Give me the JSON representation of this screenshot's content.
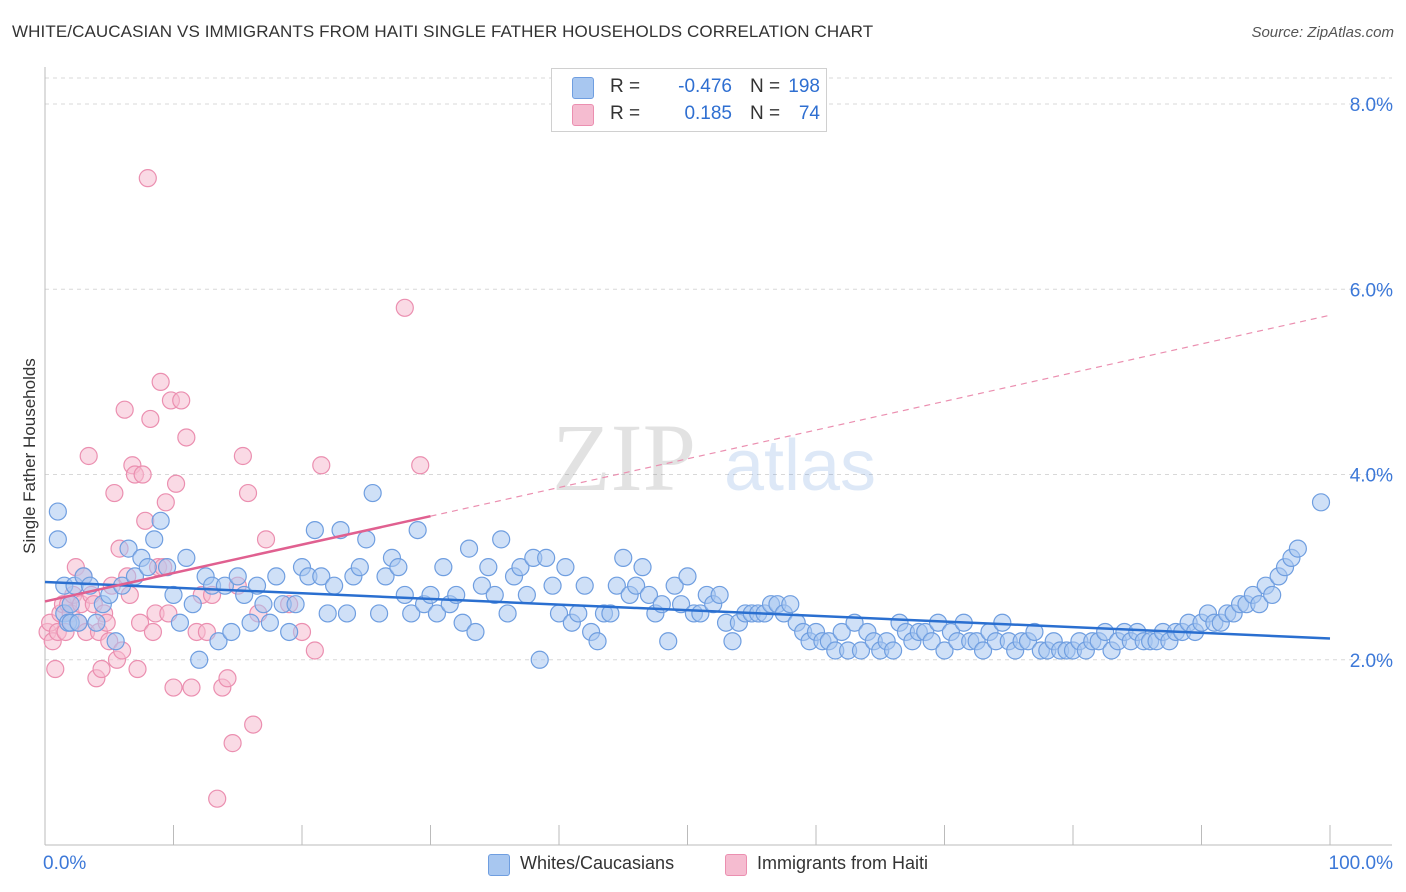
{
  "header": {
    "title": "WHITE/CAUCASIAN VS IMMIGRANTS FROM HAITI SINGLE FATHER HOUSEHOLDS CORRELATION CHART",
    "source": "Source: ZipAtlas.com"
  },
  "watermark": {
    "zip": "ZIP",
    "atlas": "atlas"
  },
  "legend": {
    "rows": [
      {
        "r_label": "R =",
        "r_value": "-0.476",
        "n_label": "N =",
        "n_value": "198",
        "color": "#7ba8e8"
      },
      {
        "r_label": "R =",
        "r_value": "0.185",
        "n_label": "N =",
        "n_value": "74",
        "color": "#ef93b3"
      }
    ]
  },
  "bottom_legend": {
    "items": [
      {
        "label": "Whites/Caucasians",
        "color": "#7ba8e8"
      },
      {
        "label": "Immigrants from Haiti",
        "color": "#ef93b3"
      }
    ]
  },
  "colors": {
    "blue_fill": "#a8c7f0",
    "blue_stroke": "#6f9ee0",
    "blue_line": "#2a6fd0",
    "pink_fill": "#f5bcd0",
    "pink_stroke": "#eb8fb0",
    "pink_line": "#e06090",
    "tick_label": "#3c78d8",
    "grid": "#d8d8d8"
  },
  "chart_data": {
    "type": "scatter",
    "title": "WHITE/CAUCASIAN VS IMMIGRANTS FROM HAITI SINGLE FATHER HOUSEHOLDS CORRELATION CHART",
    "xlabel": "",
    "ylabel": "Single Father Households",
    "xlim": [
      0,
      100
    ],
    "ylim": [
      0,
      8.4
    ],
    "x_tick_labels": [
      "0.0%",
      "100.0%"
    ],
    "y_ticks": [
      2.0,
      4.0,
      6.0,
      8.0
    ],
    "y_tick_labels": [
      "2.0%",
      "4.0%",
      "6.0%",
      "8.0%"
    ],
    "grid": true,
    "legend_position": "top-center",
    "series": [
      {
        "name": "Whites/Caucasians",
        "r": -0.476,
        "n": 198,
        "trend": {
          "x0": 0,
          "y0": 2.84,
          "x1": 100,
          "y1": 2.23,
          "style": "solid"
        },
        "points": [
          [
            1.0,
            3.6
          ],
          [
            1.0,
            3.3
          ],
          [
            1.5,
            2.8
          ],
          [
            1.5,
            2.5
          ],
          [
            1.8,
            2.4
          ],
          [
            2.0,
            2.6
          ],
          [
            2.0,
            2.4
          ],
          [
            2.3,
            2.8
          ],
          [
            2.6,
            2.4
          ],
          [
            3.0,
            2.9
          ],
          [
            3.5,
            2.8
          ],
          [
            4.0,
            2.4
          ],
          [
            4.5,
            2.6
          ],
          [
            5.0,
            2.7
          ],
          [
            5.5,
            2.2
          ],
          [
            6.0,
            2.8
          ],
          [
            6.5,
            3.2
          ],
          [
            7.0,
            2.9
          ],
          [
            7.5,
            3.1
          ],
          [
            8.0,
            3.0
          ],
          [
            8.5,
            3.3
          ],
          [
            9.0,
            3.5
          ],
          [
            9.5,
            3.0
          ],
          [
            10.0,
            2.7
          ],
          [
            10.5,
            2.4
          ],
          [
            11.0,
            3.1
          ],
          [
            11.5,
            2.6
          ],
          [
            12.0,
            2.0
          ],
          [
            12.5,
            2.9
          ],
          [
            13.0,
            2.8
          ],
          [
            13.5,
            2.2
          ],
          [
            14.0,
            2.8
          ],
          [
            14.5,
            2.3
          ],
          [
            15.0,
            2.9
          ],
          [
            15.5,
            2.7
          ],
          [
            16.0,
            2.4
          ],
          [
            16.5,
            2.8
          ],
          [
            17.0,
            2.6
          ],
          [
            17.5,
            2.4
          ],
          [
            18.0,
            2.9
          ],
          [
            18.5,
            2.6
          ],
          [
            19.0,
            2.3
          ],
          [
            19.5,
            2.6
          ],
          [
            20.0,
            3.0
          ],
          [
            20.5,
            2.9
          ],
          [
            21.0,
            3.4
          ],
          [
            21.5,
            2.9
          ],
          [
            22.0,
            2.5
          ],
          [
            22.5,
            2.8
          ],
          [
            23.0,
            3.4
          ],
          [
            23.5,
            2.5
          ],
          [
            24.0,
            2.9
          ],
          [
            24.5,
            3.0
          ],
          [
            25.0,
            3.3
          ],
          [
            25.5,
            3.8
          ],
          [
            26.0,
            2.5
          ],
          [
            26.5,
            2.9
          ],
          [
            27.0,
            3.1
          ],
          [
            27.5,
            3.0
          ],
          [
            28.0,
            2.7
          ],
          [
            28.5,
            2.5
          ],
          [
            29.0,
            3.4
          ],
          [
            29.5,
            2.6
          ],
          [
            30.0,
            2.7
          ],
          [
            30.5,
            2.5
          ],
          [
            31.0,
            3.0
          ],
          [
            31.5,
            2.6
          ],
          [
            32.0,
            2.7
          ],
          [
            32.5,
            2.4
          ],
          [
            33.0,
            3.2
          ],
          [
            33.5,
            2.3
          ],
          [
            34.0,
            2.8
          ],
          [
            34.5,
            3.0
          ],
          [
            35.0,
            2.7
          ],
          [
            35.5,
            3.3
          ],
          [
            36.0,
            2.5
          ],
          [
            36.5,
            2.9
          ],
          [
            37.0,
            3.0
          ],
          [
            37.5,
            2.7
          ],
          [
            38.0,
            3.1
          ],
          [
            38.5,
            2.0
          ],
          [
            39.0,
            3.1
          ],
          [
            39.5,
            2.8
          ],
          [
            40.0,
            2.5
          ],
          [
            40.5,
            3.0
          ],
          [
            41.0,
            2.4
          ],
          [
            41.5,
            2.5
          ],
          [
            42.0,
            2.8
          ],
          [
            42.5,
            2.3
          ],
          [
            43.0,
            2.2
          ],
          [
            43.5,
            2.5
          ],
          [
            44.0,
            2.5
          ],
          [
            44.5,
            2.8
          ],
          [
            45.0,
            3.1
          ],
          [
            45.5,
            2.7
          ],
          [
            46.0,
            2.8
          ],
          [
            46.5,
            3.0
          ],
          [
            47.0,
            2.7
          ],
          [
            47.5,
            2.5
          ],
          [
            48.0,
            2.6
          ],
          [
            48.5,
            2.2
          ],
          [
            49.0,
            2.8
          ],
          [
            49.5,
            2.6
          ],
          [
            50.0,
            2.9
          ],
          [
            50.5,
            2.5
          ],
          [
            51.0,
            2.5
          ],
          [
            51.5,
            2.7
          ],
          [
            52.0,
            2.6
          ],
          [
            52.5,
            2.7
          ],
          [
            53.0,
            2.4
          ],
          [
            53.5,
            2.2
          ],
          [
            54.0,
            2.4
          ],
          [
            54.5,
            2.5
          ],
          [
            55.0,
            2.5
          ],
          [
            55.5,
            2.5
          ],
          [
            56.0,
            2.5
          ],
          [
            56.5,
            2.6
          ],
          [
            57.0,
            2.6
          ],
          [
            57.5,
            2.5
          ],
          [
            58.0,
            2.6
          ],
          [
            58.5,
            2.4
          ],
          [
            59.0,
            2.3
          ],
          [
            59.5,
            2.2
          ],
          [
            60.0,
            2.3
          ],
          [
            60.5,
            2.2
          ],
          [
            61.0,
            2.2
          ],
          [
            61.5,
            2.1
          ],
          [
            62.0,
            2.3
          ],
          [
            62.5,
            2.1
          ],
          [
            63.0,
            2.4
          ],
          [
            63.5,
            2.1
          ],
          [
            64.0,
            2.3
          ],
          [
            64.5,
            2.2
          ],
          [
            65.0,
            2.1
          ],
          [
            65.5,
            2.2
          ],
          [
            66.0,
            2.1
          ],
          [
            66.5,
            2.4
          ],
          [
            67.0,
            2.3
          ],
          [
            67.5,
            2.2
          ],
          [
            68.0,
            2.3
          ],
          [
            68.5,
            2.3
          ],
          [
            69.0,
            2.2
          ],
          [
            69.5,
            2.4
          ],
          [
            70.0,
            2.1
          ],
          [
            70.5,
            2.3
          ],
          [
            71.0,
            2.2
          ],
          [
            71.5,
            2.4
          ],
          [
            72.0,
            2.2
          ],
          [
            72.5,
            2.2
          ],
          [
            73.0,
            2.1
          ],
          [
            73.5,
            2.3
          ],
          [
            74.0,
            2.2
          ],
          [
            74.5,
            2.4
          ],
          [
            75.0,
            2.2
          ],
          [
            75.5,
            2.1
          ],
          [
            76.0,
            2.2
          ],
          [
            76.5,
            2.2
          ],
          [
            77.0,
            2.3
          ],
          [
            77.5,
            2.1
          ],
          [
            78.0,
            2.1
          ],
          [
            78.5,
            2.2
          ],
          [
            79.0,
            2.1
          ],
          [
            79.5,
            2.1
          ],
          [
            80.0,
            2.1
          ],
          [
            80.5,
            2.2
          ],
          [
            81.0,
            2.1
          ],
          [
            81.5,
            2.2
          ],
          [
            82.0,
            2.2
          ],
          [
            82.5,
            2.3
          ],
          [
            83.0,
            2.1
          ],
          [
            83.5,
            2.2
          ],
          [
            84.0,
            2.3
          ],
          [
            84.5,
            2.2
          ],
          [
            85.0,
            2.3
          ],
          [
            85.5,
            2.2
          ],
          [
            86.0,
            2.2
          ],
          [
            86.5,
            2.2
          ],
          [
            87.0,
            2.3
          ],
          [
            87.5,
            2.2
          ],
          [
            88.0,
            2.3
          ],
          [
            88.5,
            2.3
          ],
          [
            89.0,
            2.4
          ],
          [
            89.5,
            2.3
          ],
          [
            90.0,
            2.4
          ],
          [
            90.5,
            2.5
          ],
          [
            91.0,
            2.4
          ],
          [
            91.5,
            2.4
          ],
          [
            92.0,
            2.5
          ],
          [
            92.5,
            2.5
          ],
          [
            93.0,
            2.6
          ],
          [
            93.5,
            2.6
          ],
          [
            94.0,
            2.7
          ],
          [
            94.5,
            2.6
          ],
          [
            95.0,
            2.8
          ],
          [
            95.5,
            2.7
          ],
          [
            96.0,
            2.9
          ],
          [
            96.5,
            3.0
          ],
          [
            97.0,
            3.1
          ],
          [
            97.5,
            3.2
          ],
          [
            99.3,
            3.7
          ]
        ]
      },
      {
        "name": "Immigrants from Haiti",
        "r": 0.185,
        "n": 74,
        "trend": {
          "x0": 0,
          "y0": 2.63,
          "x1": 30,
          "y1": 3.55,
          "dash_x1": 100,
          "dash_y1": 5.72
        },
        "points": [
          [
            0.2,
            2.3
          ],
          [
            0.4,
            2.4
          ],
          [
            0.6,
            2.2
          ],
          [
            0.8,
            1.9
          ],
          [
            1.0,
            2.3
          ],
          [
            1.2,
            2.5
          ],
          [
            1.4,
            2.6
          ],
          [
            1.6,
            2.3
          ],
          [
            1.8,
            2.6
          ],
          [
            2.0,
            2.5
          ],
          [
            2.2,
            2.7
          ],
          [
            2.4,
            3.0
          ],
          [
            2.6,
            2.4
          ],
          [
            2.8,
            2.6
          ],
          [
            3.0,
            2.9
          ],
          [
            3.2,
            2.3
          ],
          [
            3.4,
            4.2
          ],
          [
            3.6,
            2.7
          ],
          [
            3.8,
            2.6
          ],
          [
            4.0,
            1.8
          ],
          [
            4.2,
            2.3
          ],
          [
            4.4,
            1.9
          ],
          [
            4.6,
            2.5
          ],
          [
            4.8,
            2.4
          ],
          [
            5.0,
            2.2
          ],
          [
            5.2,
            2.8
          ],
          [
            5.4,
            3.8
          ],
          [
            5.6,
            2.0
          ],
          [
            5.8,
            3.2
          ],
          [
            6.0,
            2.1
          ],
          [
            6.2,
            4.7
          ],
          [
            6.4,
            2.9
          ],
          [
            6.6,
            2.7
          ],
          [
            6.8,
            4.1
          ],
          [
            7.0,
            4.0
          ],
          [
            7.2,
            1.9
          ],
          [
            7.4,
            2.4
          ],
          [
            7.6,
            4.0
          ],
          [
            7.8,
            3.5
          ],
          [
            8.0,
            7.2
          ],
          [
            8.2,
            4.6
          ],
          [
            8.4,
            2.3
          ],
          [
            8.6,
            2.5
          ],
          [
            8.8,
            3.0
          ],
          [
            9.0,
            5.0
          ],
          [
            9.2,
            3.0
          ],
          [
            9.4,
            3.7
          ],
          [
            9.6,
            2.5
          ],
          [
            9.8,
            4.8
          ],
          [
            10.0,
            1.7
          ],
          [
            10.2,
            3.9
          ],
          [
            10.6,
            4.8
          ],
          [
            11.0,
            4.4
          ],
          [
            11.4,
            1.7
          ],
          [
            11.8,
            2.3
          ],
          [
            12.2,
            2.7
          ],
          [
            12.6,
            2.3
          ],
          [
            13.0,
            2.7
          ],
          [
            13.4,
            0.5
          ],
          [
            13.8,
            1.7
          ],
          [
            14.2,
            1.8
          ],
          [
            14.6,
            1.1
          ],
          [
            15.0,
            2.8
          ],
          [
            15.4,
            4.2
          ],
          [
            15.8,
            3.8
          ],
          [
            16.2,
            1.3
          ],
          [
            16.6,
            2.5
          ],
          [
            17.2,
            3.3
          ],
          [
            19.0,
            2.6
          ],
          [
            20.0,
            2.3
          ],
          [
            21.0,
            2.1
          ],
          [
            21.5,
            4.1
          ],
          [
            28.0,
            5.8
          ],
          [
            29.2,
            4.1
          ]
        ]
      }
    ]
  }
}
